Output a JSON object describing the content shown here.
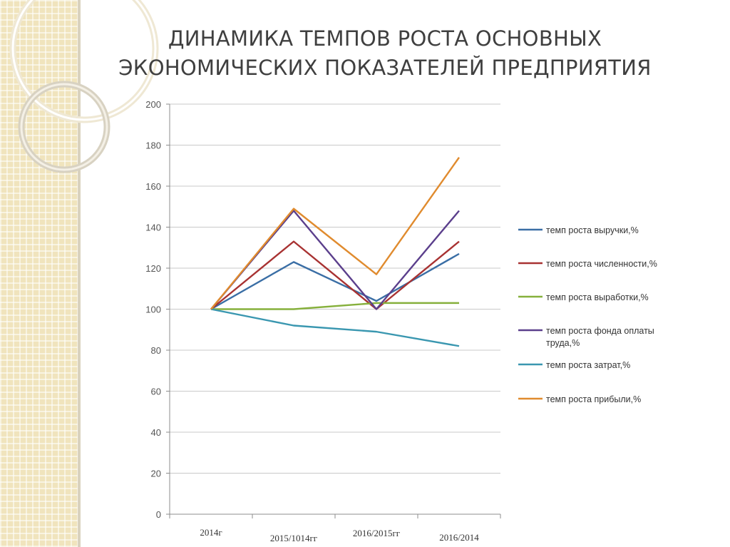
{
  "slide": {
    "title_line1": "ДИНАМИКА ТЕМПОВ РОСТА ОСНОВНЫХ",
    "title_line2": "ЭКОНОМИЧЕСКИХ ПОКАЗАТЕЛЕЙ ПРЕДПРИЯТИЯ"
  },
  "chart_data": {
    "type": "line",
    "categories": [
      "2014г",
      "2015/1014гг",
      "2016/2015гг",
      "2016/2014"
    ],
    "ylim": [
      0,
      200
    ],
    "yticks": [
      0,
      20,
      40,
      60,
      80,
      100,
      120,
      140,
      160,
      180,
      200
    ],
    "grid": true,
    "legend_position": "right",
    "series": [
      {
        "name": "темп роста выручки,%",
        "color": "#3a6ea5",
        "values": [
          100,
          123,
          104,
          127
        ]
      },
      {
        "name": "темп роста численности,%",
        "color": "#a83232",
        "values": [
          100,
          133,
          100,
          133
        ]
      },
      {
        "name": "темп роста выработки,%",
        "color": "#86b03c",
        "values": [
          100,
          100,
          103,
          103
        ]
      },
      {
        "name": "темп роста фонда оплаты труда,%",
        "color": "#5b3f8c",
        "values": [
          100,
          148,
          100,
          148
        ]
      },
      {
        "name": "темп роста затрат,%",
        "color": "#3a97b0",
        "values": [
          100,
          92,
          89,
          82
        ]
      },
      {
        "name": "темп роста прибыли,%",
        "color": "#e08b2e",
        "values": [
          100,
          149,
          117,
          174
        ]
      }
    ]
  }
}
